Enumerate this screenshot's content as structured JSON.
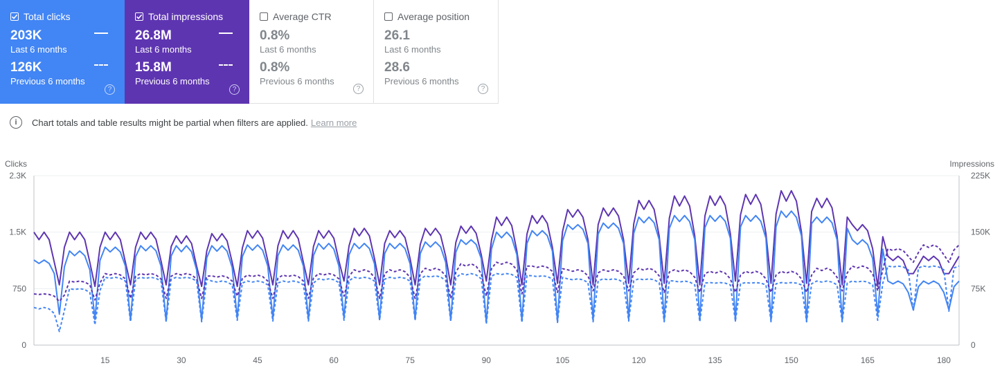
{
  "metrics": [
    {
      "label": "Total clicks",
      "checked": true,
      "current": "203K",
      "current_period": "Last 6 months",
      "previous": "126K",
      "previous_period": "Previous 6 months",
      "color": "#4285f4"
    },
    {
      "label": "Total impressions",
      "checked": true,
      "current": "26.8M",
      "current_period": "Last 6 months",
      "previous": "15.8M",
      "previous_period": "Previous 6 months",
      "color": "#5e35b1"
    },
    {
      "label": "Average CTR",
      "checked": false,
      "current": "0.8%",
      "current_period": "Last 6 months",
      "previous": "0.8%",
      "previous_period": "Previous 6 months"
    },
    {
      "label": "Average position",
      "checked": false,
      "current": "26.1",
      "current_period": "Last 6 months",
      "previous": "28.6",
      "previous_period": "Previous 6 months"
    }
  ],
  "help_icon": "?",
  "info_icon": "i",
  "notice": {
    "text": "Chart totals and table results might be partial when filters are applied.",
    "link": "Learn more"
  },
  "chart_data": {
    "type": "line",
    "ylabel_left": "Clicks",
    "ylabel_right": "Impressions",
    "y_left_ticks": [
      "0",
      "750",
      "1.5K",
      "2.3K"
    ],
    "y_left_range": [
      0,
      2250
    ],
    "y_right_ticks": [
      "0",
      "75K",
      "150K",
      "225K"
    ],
    "y_right_range": [
      0,
      225000
    ],
    "x_ticks": [
      "15",
      "30",
      "45",
      "60",
      "75",
      "90",
      "105",
      "120",
      "135",
      "150",
      "165",
      "180"
    ],
    "x_range": [
      1,
      183
    ],
    "grid": true,
    "weekly_pattern": {
      "start_day": 1,
      "period_days": 7,
      "trough_offset": 5,
      "low_offset": 4
    },
    "series": [
      {
        "name": "Total impressions",
        "axis": "right",
        "style": "solid",
        "color": "#5e35b1",
        "weekly_highs": [
          150000,
          150000,
          150000,
          150000,
          145000,
          148000,
          152000,
          152000,
          152000,
          155000,
          152000,
          155000,
          158000,
          170000,
          172000,
          180000,
          182000,
          192000,
          198000,
          198000,
          200000,
          205000,
          195000,
          160000,
          118000,
          118000
        ],
        "weekly_lows": [
          110000,
          110000,
          110000,
          112000,
          105000,
          110000,
          112000,
          110000,
          112000,
          115000,
          115000,
          118000,
          120000,
          125000,
          130000,
          140000,
          140000,
          145000,
          145000,
          148000,
          148000,
          150000,
          145000,
          128000,
          95000,
          95000
        ],
        "weekly_troughs": [
          80000,
          78000,
          80000,
          80000,
          78000,
          78000,
          80000,
          80000,
          85000,
          80000,
          80000,
          80000,
          85000,
          80000,
          82000,
          80000,
          82000,
          82000,
          80000,
          85000,
          82000,
          82000,
          80000,
          78000,
          95000,
          95000
        ]
      },
      {
        "name": "Total clicks",
        "axis": "left",
        "style": "solid",
        "color": "#4285f4",
        "weekly_highs": [
          1130,
          1250,
          1300,
          1320,
          1320,
          1320,
          1330,
          1330,
          1350,
          1350,
          1350,
          1370,
          1400,
          1500,
          1520,
          1600,
          1620,
          1700,
          1720,
          1720,
          1720,
          1780,
          1700,
          1400,
          850,
          850
        ],
        "weekly_lows": [
          950,
          1000,
          1050,
          1050,
          1000,
          1030,
          1050,
          1050,
          1050,
          1080,
          1080,
          1100,
          1150,
          1200,
          1250,
          1350,
          1350,
          1400,
          1400,
          1420,
          1420,
          1450,
          1400,
          1150,
          700,
          700
        ],
        "weekly_troughs": [
          410,
          340,
          330,
          320,
          330,
          360,
          350,
          340,
          360,
          340,
          340,
          330,
          300,
          320,
          310,
          330,
          340,
          320,
          330,
          320,
          310,
          310,
          310,
          400,
          470,
          470
        ]
      },
      {
        "name": "Total impressions (previous 6 months)",
        "axis": "right",
        "style": "dashed",
        "color": "#5e35b1",
        "weekly_highs": [
          68000,
          85000,
          95000,
          95000,
          95000,
          92000,
          93000,
          93000,
          95000,
          100000,
          100000,
          102000,
          108000,
          110000,
          105000,
          100000,
          100000,
          102000,
          100000,
          98000,
          98000,
          98000,
          102000,
          105000,
          128000,
          133000
        ],
        "weekly_lows": [
          65000,
          80000,
          88000,
          88000,
          88000,
          85000,
          85000,
          85000,
          88000,
          90000,
          90000,
          92000,
          95000,
          100000,
          98000,
          92000,
          92000,
          92000,
          90000,
          88000,
          88000,
          88000,
          90000,
          95000,
          118000,
          120000
        ],
        "weekly_troughs": [
          58000,
          60000,
          62000,
          62000,
          62000,
          65000,
          62000,
          62000,
          65000,
          62000,
          62000,
          62000,
          65000,
          68000,
          70000,
          72000,
          72000,
          70000,
          70000,
          70000,
          70000,
          70000,
          72000,
          72000,
          110000,
          110000
        ]
      },
      {
        "name": "Total clicks (previous 6 months)",
        "axis": "left",
        "style": "dashed",
        "color": "#4285f4",
        "weekly_highs": [
          500,
          750,
          900,
          900,
          900,
          850,
          850,
          850,
          880,
          900,
          900,
          920,
          950,
          950,
          920,
          880,
          880,
          880,
          850,
          830,
          830,
          830,
          850,
          850,
          1050,
          1050
        ],
        "weekly_lows": [
          420,
          700,
          850,
          850,
          850,
          800,
          800,
          800,
          830,
          850,
          850,
          860,
          880,
          900,
          880,
          830,
          830,
          830,
          800,
          800,
          800,
          800,
          800,
          800,
          1000,
          1000
        ],
        "weekly_troughs": [
          180,
          270,
          310,
          310,
          310,
          330,
          320,
          320,
          330,
          330,
          330,
          320,
          280,
          300,
          300,
          310,
          320,
          310,
          310,
          320,
          320,
          310,
          310,
          330,
          450,
          450
        ]
      }
    ]
  }
}
